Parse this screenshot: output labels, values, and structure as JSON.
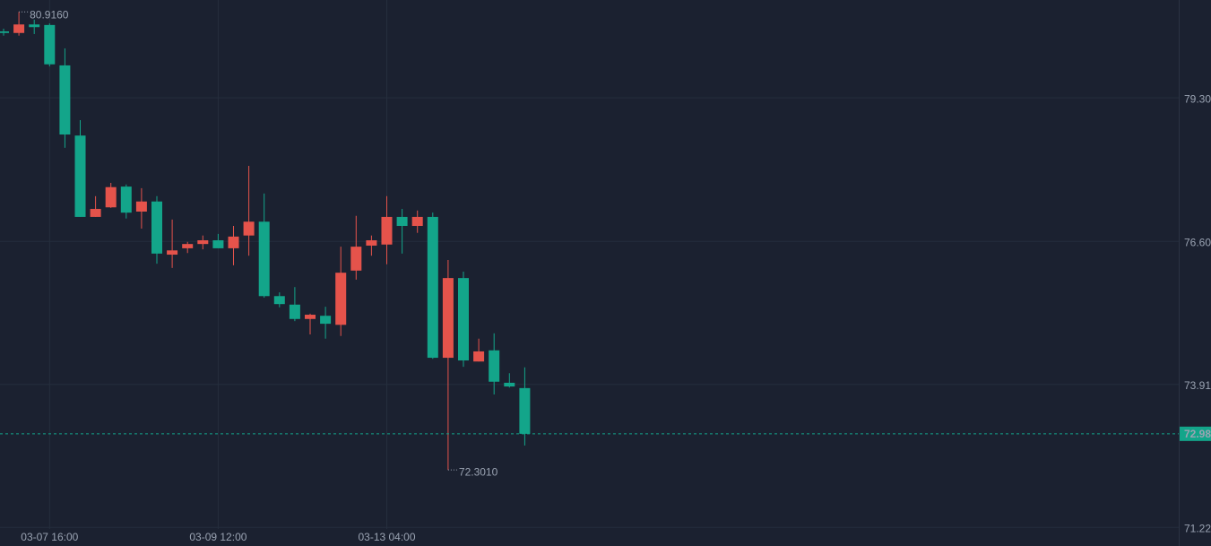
{
  "chart_data": {
    "type": "candlestick",
    "categories": [
      null,
      null,
      null,
      "03-07 16:00",
      null,
      null,
      null,
      null,
      null,
      null,
      null,
      null,
      null,
      null,
      "03-09 12:00",
      null,
      null,
      null,
      null,
      null,
      null,
      null,
      null,
      null,
      null,
      "03-13 04:00",
      null,
      null,
      null,
      null,
      null,
      null,
      null,
      null,
      null
    ],
    "open": [
      80.55,
      80.52,
      80.68,
      80.67,
      79.91,
      78.59,
      77.06,
      77.24,
      77.63,
      77.16,
      77.35,
      76.35,
      76.47,
      76.55,
      76.62,
      76.47,
      76.71,
      76.97,
      75.57,
      75.41,
      75.14,
      75.2,
      75.03,
      76.05,
      76.52,
      76.54,
      77.06,
      76.89,
      77.06,
      74.41,
      75.91,
      74.34,
      74.55,
      73.94,
      73.84
    ],
    "high": [
      80.6,
      80.916,
      80.77,
      80.7,
      80.23,
      78.88,
      77.45,
      77.7,
      77.67,
      77.6,
      77.45,
      77.01,
      76.59,
      76.71,
      76.74,
      76.89,
      78.02,
      77.5,
      75.64,
      75.74,
      75.24,
      75.37,
      76.5,
      77.08,
      76.71,
      77.45,
      77.21,
      77.18,
      77.14,
      76.25,
      76.03,
      74.77,
      74.87,
      74.12,
      74.23
    ],
    "low": [
      80.47,
      80.47,
      80.5,
      79.89,
      78.36,
      77.06,
      77.06,
      77.23,
      77.03,
      76.84,
      76.18,
      76.1,
      76.38,
      76.45,
      76.47,
      76.15,
      76.33,
      75.54,
      75.36,
      75.1,
      74.85,
      74.77,
      74.82,
      75.88,
      76.33,
      76.17,
      76.37,
      76.76,
      74.39,
      72.301,
      74.24,
      74.34,
      73.72,
      73.85,
      72.76
    ],
    "close": [
      80.52,
      80.68,
      80.63,
      79.93,
      78.61,
      77.06,
      77.21,
      77.62,
      77.14,
      77.35,
      76.37,
      76.43,
      76.55,
      76.62,
      76.47,
      76.69,
      76.97,
      75.57,
      75.42,
      75.14,
      75.22,
      75.05,
      76.01,
      76.5,
      76.62,
      77.06,
      76.89,
      77.06,
      74.41,
      75.91,
      74.36,
      74.53,
      73.96,
      73.87,
      72.98
    ],
    "up_color": "#e5534b",
    "down_color": "#13a58a",
    "ylim": [
      71.19,
      81.14
    ],
    "yticks": [
      {
        "value": 79.3,
        "label": "79.30"
      },
      {
        "value": 76.6,
        "label": "76.60"
      },
      73.91,
      71.22
    ],
    "ytick_colors": [
      "#e5534b",
      "#e5534b",
      "#13a58a",
      "#13a58a"
    ],
    "grid": true,
    "last_price": 72.98,
    "annotations": [
      {
        "value": 80.916,
        "label": "80.9160"
      },
      {
        "value": 72.301,
        "label": "72.3010"
      }
    ]
  }
}
